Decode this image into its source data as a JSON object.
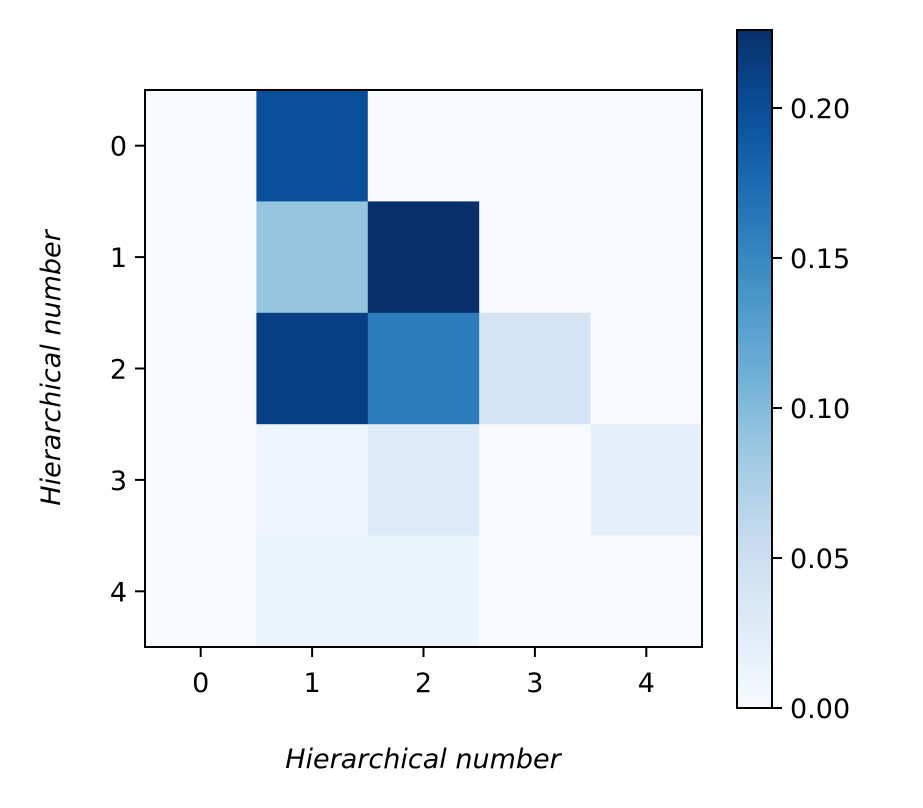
{
  "chart_data": {
    "type": "heatmap",
    "title": "",
    "xlabel": "Hierarchical number",
    "ylabel": "Hierarchical number",
    "x_categories": [
      "0",
      "1",
      "2",
      "3",
      "4"
    ],
    "y_categories": [
      "0",
      "1",
      "2",
      "3",
      "4"
    ],
    "values": [
      [
        0.0,
        0.2,
        0.0,
        0.0,
        0.0
      ],
      [
        0.0,
        0.09,
        0.226,
        0.0,
        0.0
      ],
      [
        0.0,
        0.213,
        0.16,
        0.04,
        0.0
      ],
      [
        0.0,
        0.01,
        0.03,
        0.0,
        0.022
      ],
      [
        0.0,
        0.013,
        0.013,
        0.0,
        0.0
      ]
    ],
    "colormap": "Blues",
    "colorbar": {
      "range": [
        0.0,
        0.226
      ],
      "ticks": [
        0.0,
        0.05,
        0.1,
        0.15,
        0.2
      ],
      "tick_labels": [
        "0.00",
        "0.05",
        "0.10",
        "0.15",
        "0.20"
      ]
    },
    "grid": false,
    "legend": "none"
  }
}
